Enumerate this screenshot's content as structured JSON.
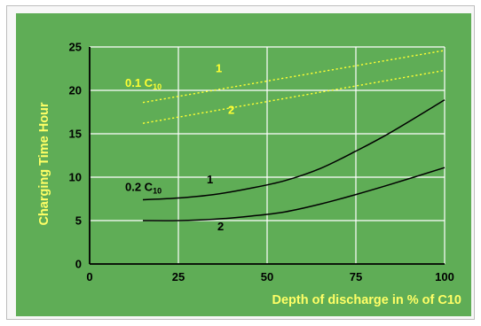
{
  "chart_data": {
    "type": "line",
    "xlabel": "Depth of discharge in % of C10",
    "ylabel": "Charging Time Hour",
    "xlim": [
      0,
      100
    ],
    "ylim": [
      0,
      25
    ],
    "x_ticks": [
      "0",
      "25",
      "50",
      "75",
      "100"
    ],
    "y_ticks": [
      "0",
      "5",
      "10",
      "15",
      "20",
      "25"
    ],
    "grid": true,
    "colors": {
      "background": "#5fad56",
      "grid": "#ffffff",
      "yellow": "#ffff33",
      "black": "#000000",
      "axis_title": "#ffff66"
    },
    "groups": [
      {
        "label_main": "0.1 C",
        "label_sub": "10",
        "color": "#ffff33",
        "style": "dotted",
        "group_x": 10,
        "group_y": 20.4
      },
      {
        "label_main": "0.2 C",
        "label_sub": "10",
        "color": "#000000",
        "style": "solid",
        "group_x": 10,
        "group_y": 8.4
      }
    ],
    "series": [
      {
        "name": "1",
        "group": 0,
        "label_x": 35.5,
        "label_y": 22.1,
        "x": [
          15,
          100
        ],
        "y": [
          18.6,
          24.6
        ]
      },
      {
        "name": "2",
        "group": 0,
        "label_x": 39,
        "label_y": 17.3,
        "x": [
          15,
          100
        ],
        "y": [
          16.2,
          22.3
        ]
      },
      {
        "name": "1",
        "group": 1,
        "label_x": 33,
        "label_y": 9.3,
        "x": [
          15,
          25,
          35,
          45,
          55,
          65,
          75,
          85,
          100
        ],
        "y": [
          7.4,
          7.6,
          8.0,
          8.7,
          9.6,
          11.0,
          13.0,
          15.2,
          18.9
        ]
      },
      {
        "name": "2",
        "group": 1,
        "label_x": 36,
        "label_y": 3.9,
        "x": [
          15,
          25,
          35,
          45,
          55,
          65,
          75,
          85,
          100
        ],
        "y": [
          5.0,
          5.0,
          5.15,
          5.5,
          6.0,
          6.9,
          8.0,
          9.2,
          11.1
        ]
      }
    ]
  }
}
